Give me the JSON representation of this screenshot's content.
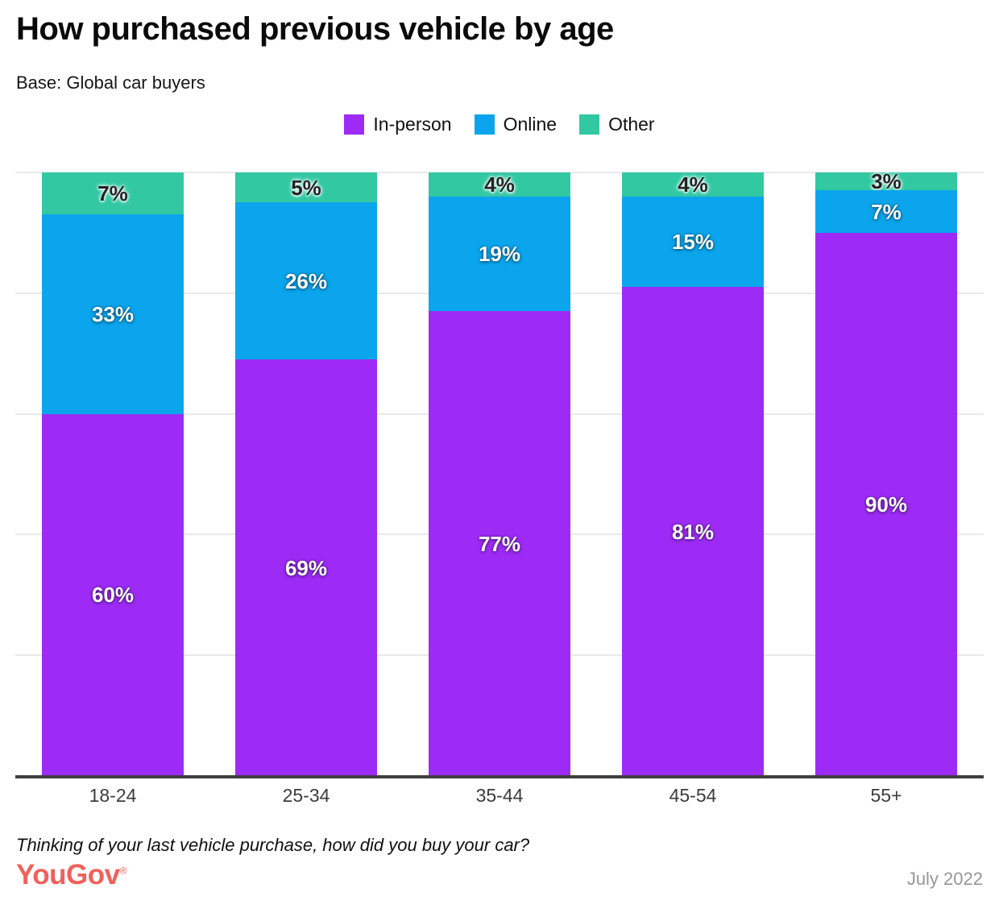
{
  "header": {
    "title": "How purchased previous vehicle by age",
    "subtitle": "Base: Global car buyers"
  },
  "chart_data": {
    "type": "bar",
    "stacked": true,
    "orientation": "vertical",
    "categories": [
      "18-24",
      "25-34",
      "35-44",
      "45-54",
      "55+"
    ],
    "series": [
      {
        "name": "In-person",
        "color": "#9d2bf5",
        "label_style": "light",
        "values": [
          60,
          69,
          77,
          81,
          90
        ]
      },
      {
        "name": "Online",
        "color": "#0aa5ec",
        "label_style": "light",
        "values": [
          33,
          26,
          19,
          15,
          7
        ]
      },
      {
        "name": "Other",
        "color": "#32c8a2",
        "label_style": "dark",
        "values": [
          7,
          5,
          4,
          4,
          3
        ]
      }
    ],
    "value_suffix": "%",
    "ylim": [
      0,
      100
    ],
    "gridlines_pct": [
      0,
      20,
      40,
      60,
      80,
      100
    ],
    "grid_color": "#e9e9e9",
    "axis_color": "#3f3f3f",
    "legend_position": "top-center"
  },
  "footer": {
    "question": "Thinking of your last vehicle purchase, how did you buy your car?",
    "logo_text": "YouGov",
    "logo_mark": "®",
    "logo_color": "#f0615a",
    "date": "July 2022"
  }
}
